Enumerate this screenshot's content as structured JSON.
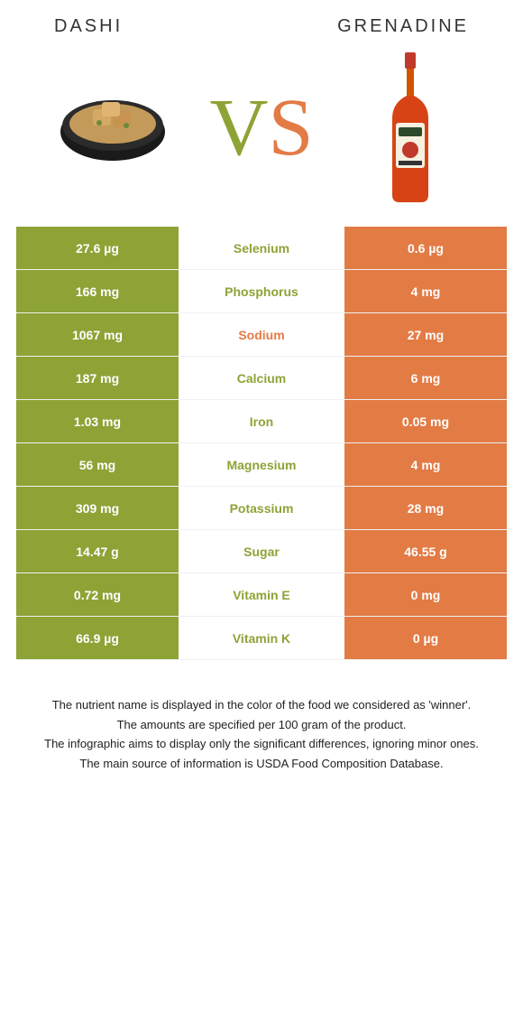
{
  "colors": {
    "left": "#8da336",
    "right": "#e37b45",
    "row_border": "#f0f0f0",
    "text": "#333333"
  },
  "foods": {
    "left": {
      "name": "Dashi"
    },
    "right": {
      "name": "Grenadine"
    }
  },
  "vs": {
    "v": "V",
    "s": "S"
  },
  "rows": [
    {
      "nutrient": "Selenium",
      "left": "27.6 µg",
      "right": "0.6 µg",
      "winner": "left"
    },
    {
      "nutrient": "Phosphorus",
      "left": "166 mg",
      "right": "4 mg",
      "winner": "left"
    },
    {
      "nutrient": "Sodium",
      "left": "1067 mg",
      "right": "27 mg",
      "winner": "right"
    },
    {
      "nutrient": "Calcium",
      "left": "187 mg",
      "right": "6 mg",
      "winner": "left"
    },
    {
      "nutrient": "Iron",
      "left": "1.03 mg",
      "right": "0.05 mg",
      "winner": "left"
    },
    {
      "nutrient": "Magnesium",
      "left": "56 mg",
      "right": "4 mg",
      "winner": "left"
    },
    {
      "nutrient": "Potassium",
      "left": "309 mg",
      "right": "28 mg",
      "winner": "left"
    },
    {
      "nutrient": "Sugar",
      "left": "14.47 g",
      "right": "46.55 g",
      "winner": "left"
    },
    {
      "nutrient": "Vitamin E",
      "left": "0.72 mg",
      "right": "0 mg",
      "winner": "left"
    },
    {
      "nutrient": "Vitamin K",
      "left": "66.9 µg",
      "right": "0 µg",
      "winner": "left"
    }
  ],
  "footnotes": [
    "The nutrient name is displayed in the color of the food we considered as 'winner'.",
    "The amounts are specified per 100 gram of the product.",
    "The infographic aims to display only the significant differences, ignoring minor ones.",
    "The main source of information is USDA Food Composition Database."
  ]
}
